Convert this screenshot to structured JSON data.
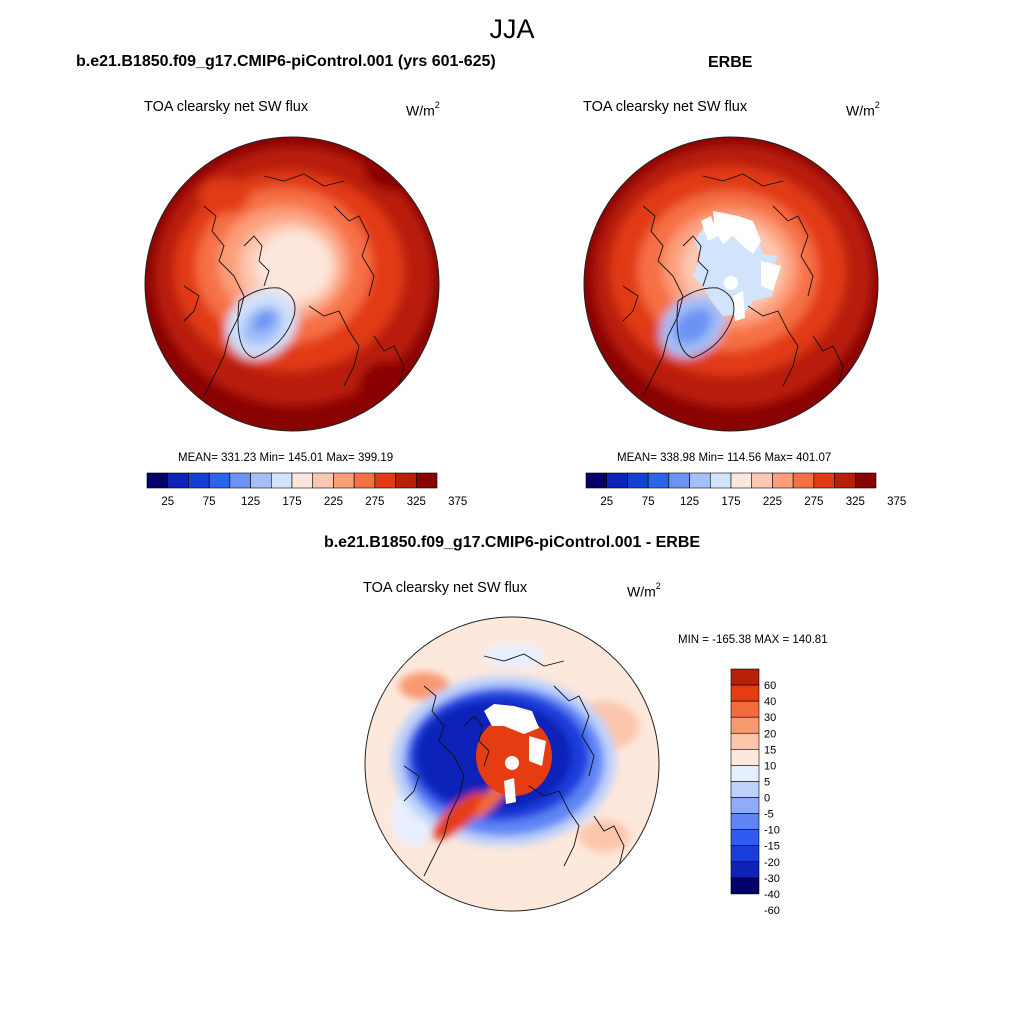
{
  "figure": {
    "season": "JJA"
  },
  "colors": {
    "abs_scale": [
      "#04016b",
      "#0e22b8",
      "#163fd4",
      "#2b63ea",
      "#6a93f4",
      "#a4c0f8",
      "#d2e3fc",
      "#fde7dc",
      "#fdc7b1",
      "#fc9e7a",
      "#f66f45",
      "#e13a14",
      "#b81f08",
      "#8a0303"
    ],
    "diff_scale": [
      "#04016b",
      "#0e22b8",
      "#1a3cdc",
      "#2f5cf0",
      "#5f85f5",
      "#8eacf7",
      "#bdd1fb",
      "#e6efff",
      "#fde8dc",
      "#fbc6ab",
      "#f89a71",
      "#f36b3d",
      "#e63c12",
      "#b81f08",
      "#8a0303"
    ]
  },
  "panels": [
    {
      "title": "b.e21.B1850.f09_g17.CMIP6-piControl.001 (yrs 601-625)",
      "variable": "TOA clearsky net SW flux",
      "units_base": "W/m",
      "units_exp": "2",
      "stats": "MEAN= 331.23  Min= 145.01  Max= 399.19"
    },
    {
      "title": "ERBE",
      "variable": "TOA clearsky net SW flux",
      "units_base": "W/m",
      "units_exp": "2",
      "stats": "MEAN= 338.98  Min= 114.56  Max= 401.07"
    },
    {
      "title": "b.e21.B1850.f09_g17.CMIP6-piControl.001 - ERBE",
      "variable": "TOA clearsky net SW flux",
      "units_base": "W/m",
      "units_exp": "2",
      "stats": "MIN = -165.38 MAX = 140.81"
    }
  ],
  "chart_data": [
    {
      "type": "heatmap",
      "projection": "north polar stereographic",
      "title": "b.e21.B1850.f09_g17.CMIP6-piControl.001 (yrs 601-625)",
      "field": "TOA clearsky net SW flux",
      "units": "W/m2",
      "mean": 331.23,
      "min": 145.01,
      "max": 399.19,
      "colorbar_labels": [
        "25",
        "75",
        "125",
        "175",
        "225",
        "275",
        "325",
        "375"
      ],
      "levels": [
        25,
        50,
        75,
        100,
        125,
        150,
        175,
        200,
        225,
        250,
        275,
        300,
        325,
        350,
        375
      ]
    },
    {
      "type": "heatmap",
      "projection": "north polar stereographic",
      "title": "ERBE",
      "field": "TOA clearsky net SW flux",
      "units": "W/m2",
      "mean": 338.98,
      "min": 114.56,
      "max": 401.07,
      "colorbar_labels": [
        "25",
        "75",
        "125",
        "175",
        "225",
        "275",
        "325",
        "375"
      ],
      "levels": [
        25,
        50,
        75,
        100,
        125,
        150,
        175,
        200,
        225,
        250,
        275,
        300,
        325,
        350,
        375
      ]
    },
    {
      "type": "heatmap",
      "projection": "north polar stereographic",
      "title": "b.e21.B1850.f09_g17.CMIP6-piControl.001 - ERBE",
      "field": "TOA clearsky net SW flux",
      "units": "W/m2",
      "min": -165.38,
      "max": 140.81,
      "colorbar_labels": [
        "60",
        "40",
        "30",
        "20",
        "15",
        "10",
        "5",
        "0",
        "-5",
        "-10",
        "-15",
        "-20",
        "-30",
        "-40",
        "-60"
      ],
      "levels": [
        -60,
        -40,
        -30,
        -20,
        -15,
        -10,
        -5,
        0,
        5,
        10,
        15,
        20,
        30,
        40,
        60
      ]
    }
  ]
}
